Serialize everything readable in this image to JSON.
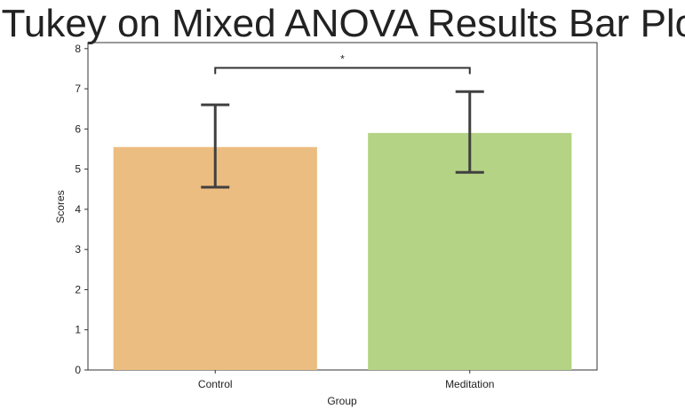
{
  "chart_data": {
    "type": "bar",
    "title": "Tukey on Mixed ANOVA Results Bar Plot",
    "xlabel": "Group",
    "ylabel": "Scores",
    "categories": [
      "Control",
      "Meditation"
    ],
    "values": [
      5.55,
      5.9
    ],
    "error_low": [
      4.55,
      4.92
    ],
    "error_high": [
      6.6,
      6.93
    ],
    "ylim": [
      0,
      8.15
    ],
    "yticks": [
      "0",
      "1",
      "2",
      "3",
      "4",
      "5",
      "6",
      "7",
      "8"
    ],
    "colors": [
      "#ECBD80",
      "#B4D384"
    ],
    "significance": {
      "from": "Control",
      "to": "Meditation",
      "y": 7.52,
      "label": "*"
    },
    "grid": false,
    "legend": "none"
  }
}
